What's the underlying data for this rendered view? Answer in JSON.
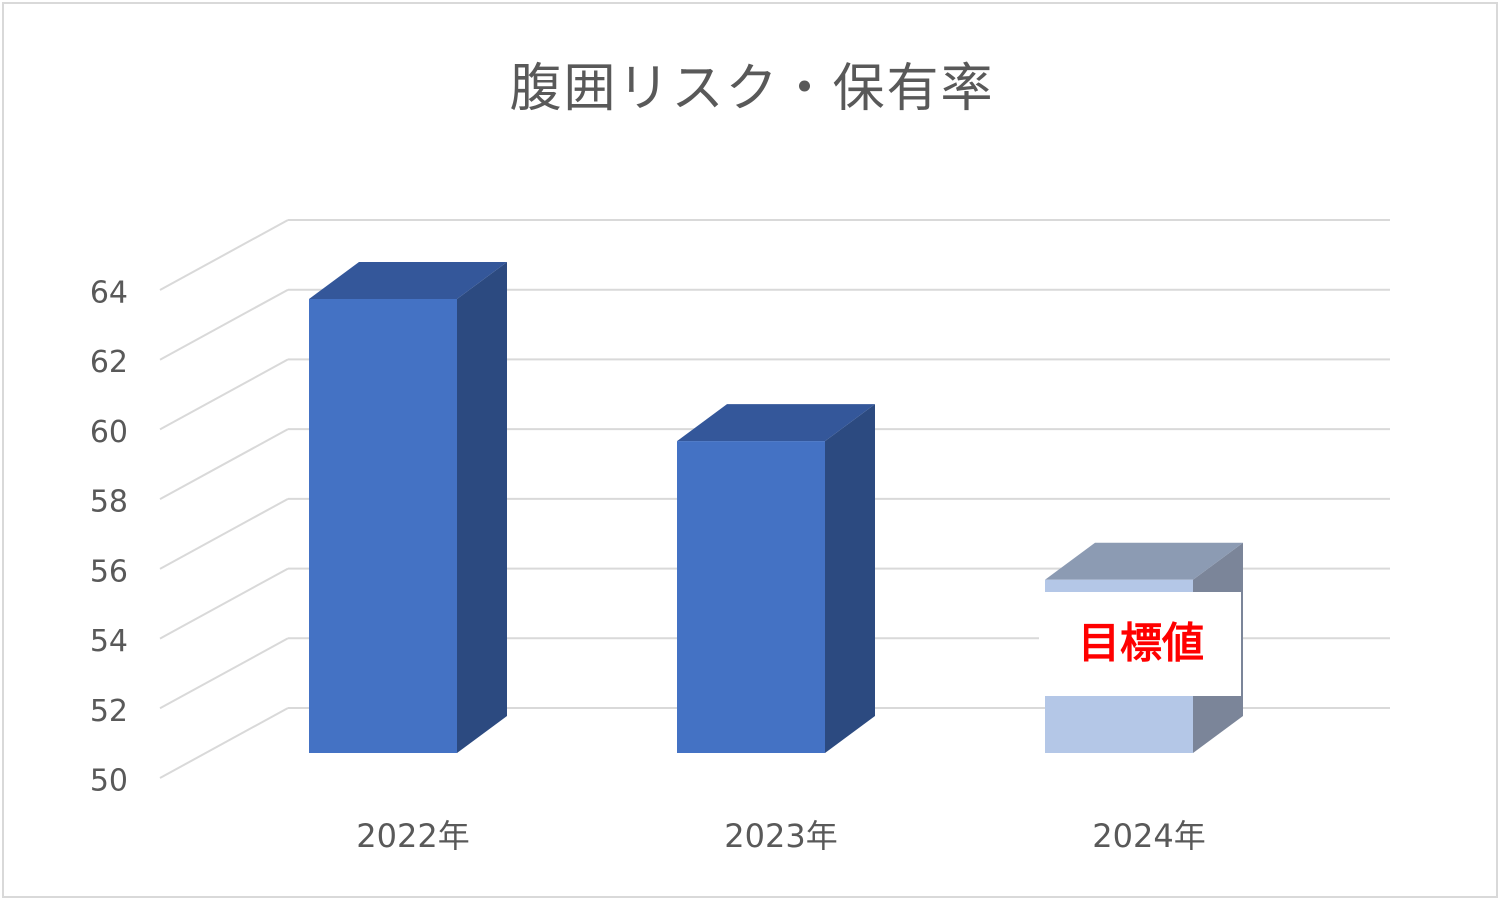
{
  "chart_data": {
    "type": "bar",
    "title": "腹囲リスク・保有率",
    "categories": [
      "2022年",
      "2023年",
      "2024年"
    ],
    "values": [
      63.1,
      59.0,
      55.0
    ],
    "ylim": [
      50,
      64
    ],
    "yticks": [
      50,
      52,
      54,
      56,
      58,
      60,
      62,
      64
    ],
    "grid": true,
    "bar_colors": {
      "front": [
        "#4472c4",
        "#4472c4",
        "#b4c7e7"
      ],
      "side": [
        "#2c4a80",
        "#2c4a80",
        "#7b8599"
      ],
      "top": [
        "#34579a",
        "#34579a",
        "#8c9bb3"
      ]
    },
    "annotation": {
      "category": "2024年",
      "text": "目標値",
      "color": "#ff0000"
    }
  }
}
